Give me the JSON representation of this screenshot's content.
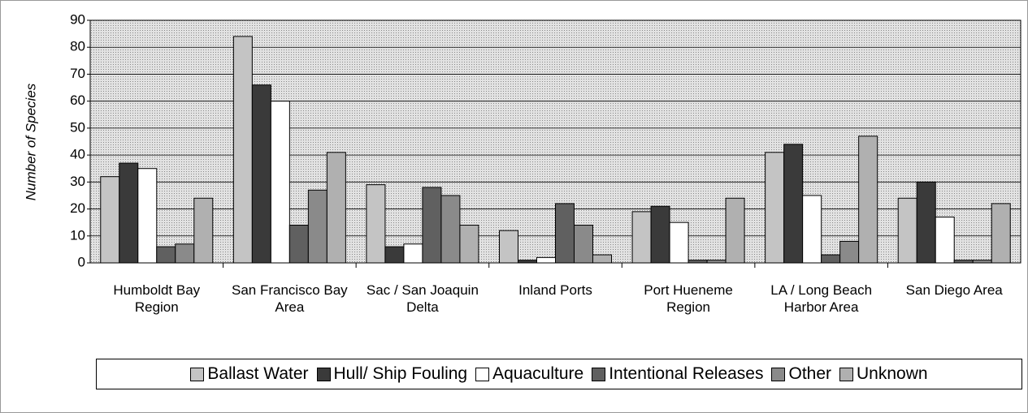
{
  "chart_data": {
    "type": "bar",
    "y_label": "Number of Species",
    "categories": [
      "Humboldt Bay Region",
      "San Francisco Bay Area",
      "Sac / San Joaquin Delta",
      "Inland Ports",
      "Port Hueneme Region",
      "LA / Long Beach Harbor Area",
      "San Diego Area"
    ],
    "series": [
      {
        "name": "Ballast Water",
        "color": "#c4c4c4",
        "values": [
          32,
          84,
          29,
          12,
          19,
          41,
          24
        ]
      },
      {
        "name": "Hull/ Ship Fouling",
        "color": "#3a3a3a",
        "values": [
          37,
          66,
          6,
          1,
          21,
          44,
          30
        ]
      },
      {
        "name": "Aquaculture",
        "color": "#ffffff",
        "values": [
          35,
          60,
          7,
          2,
          15,
          25,
          17
        ]
      },
      {
        "name": "Intentional Releases",
        "color": "#606060",
        "values": [
          6,
          14,
          28,
          22,
          1,
          3,
          1
        ]
      },
      {
        "name": "Other",
        "color": "#8a8a8a",
        "values": [
          7,
          27,
          25,
          14,
          1,
          8,
          1
        ]
      },
      {
        "name": "Unknown",
        "color": "#b0b0b0",
        "values": [
          24,
          41,
          14,
          3,
          24,
          47,
          22
        ]
      }
    ],
    "ylim": [
      0,
      90
    ],
    "yticks": [
      0,
      10,
      20,
      30,
      40,
      50,
      60,
      70,
      80,
      90
    ],
    "grid": true,
    "legend": "bottom"
  }
}
